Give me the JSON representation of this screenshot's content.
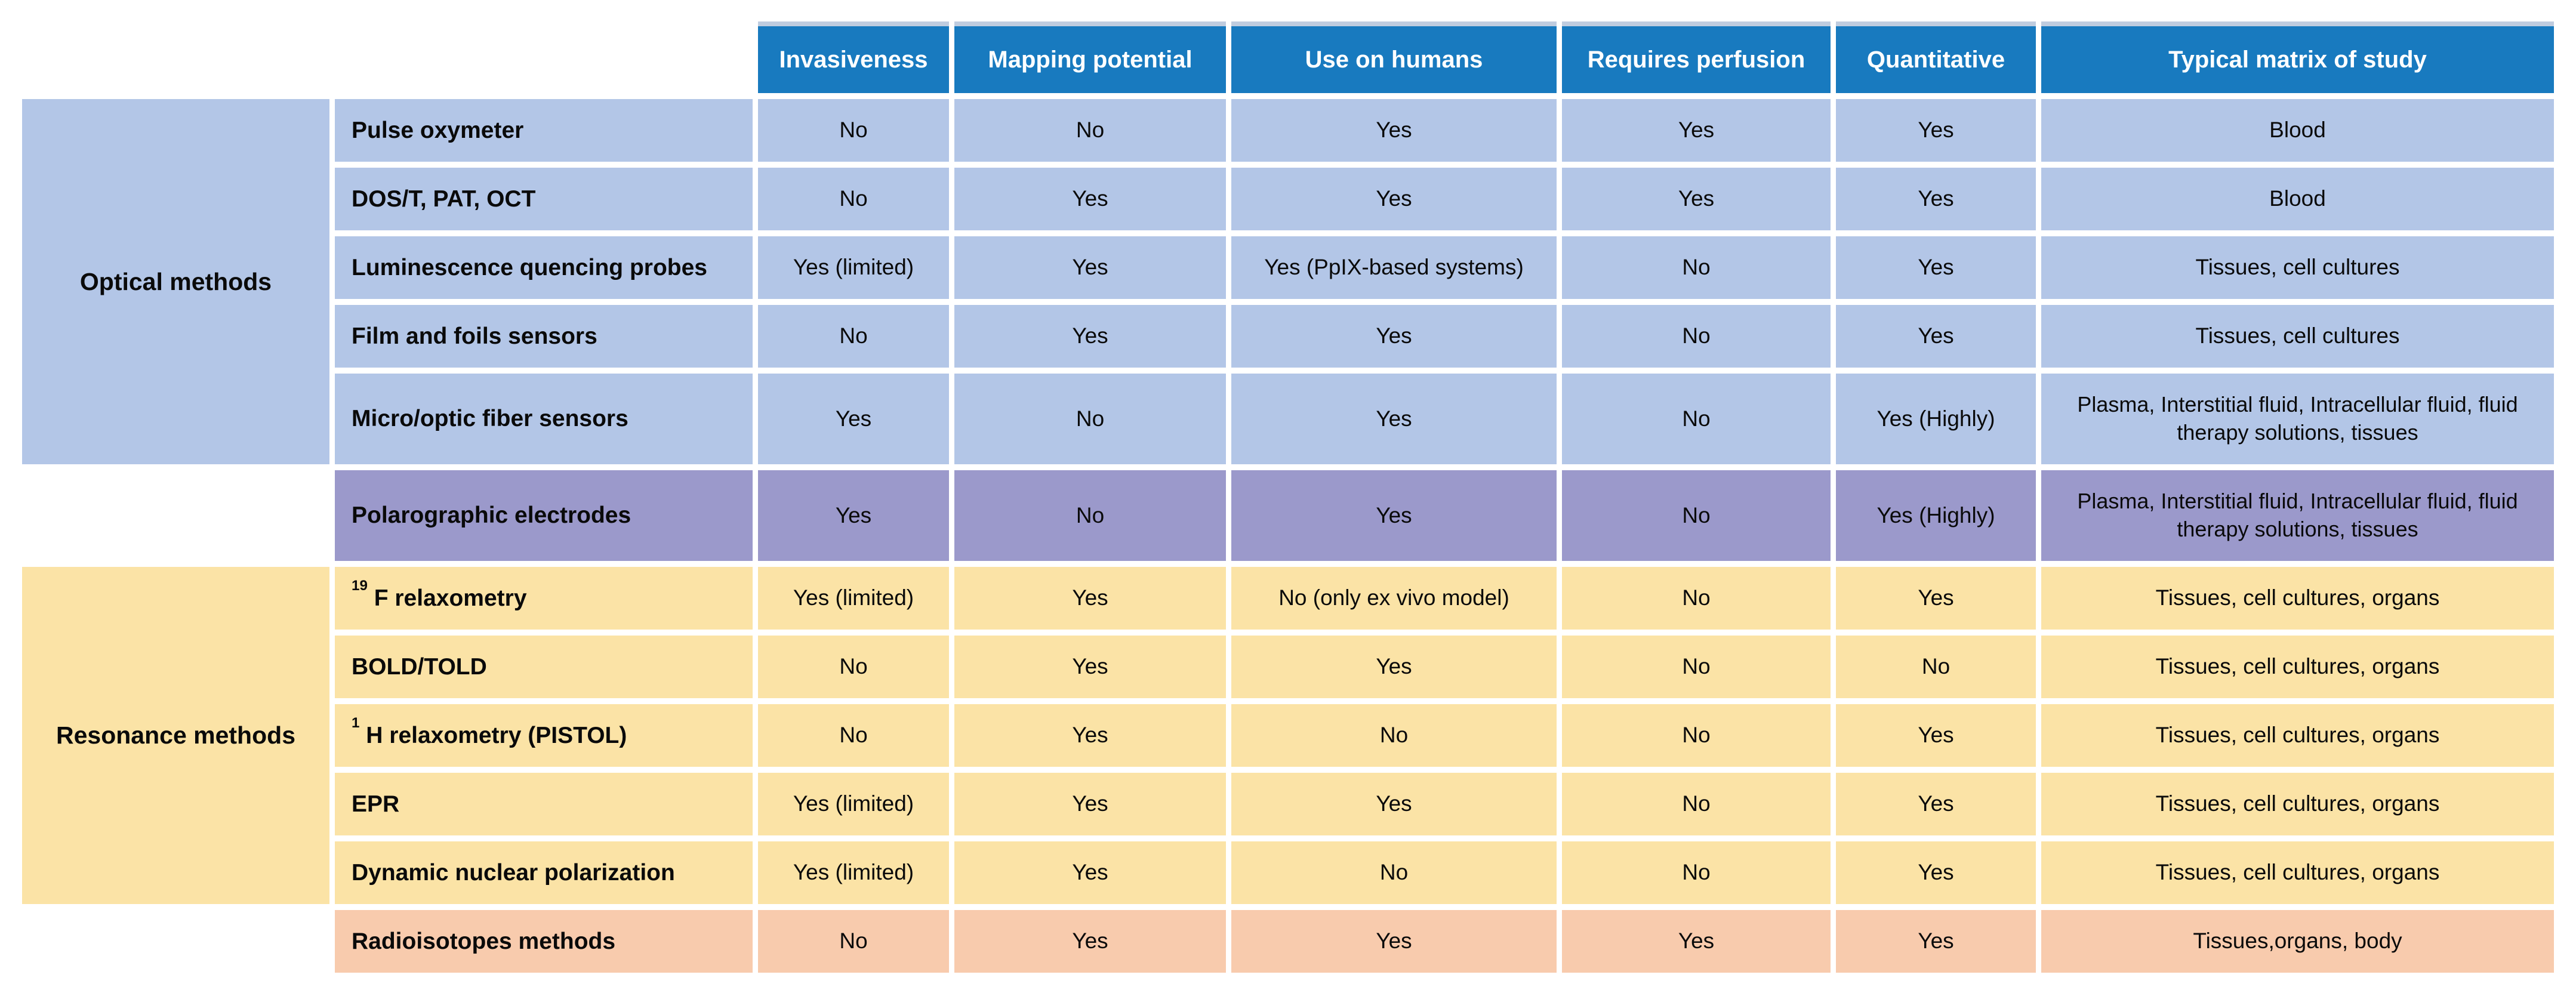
{
  "colors": {
    "header_bg": "#187ABF",
    "header_text": "#ffffff",
    "optical_row_bg": "#B3C6E7",
    "polarographic_row_bg": "#9B99CB",
    "resonance_row_bg": "#FBE3A6",
    "radioisotopes_row_bg": "#F8CBAD",
    "text": "#0a0a0a",
    "header_top_strip": "#BFCCDF",
    "page_bg": "#ffffff"
  },
  "chart_data": {
    "type": "table",
    "title": "",
    "column_headers": [
      "Invasiveness",
      "Mapping potential",
      "Use on humans",
      "Requires perfusion",
      "Quantitative",
      "Typical matrix of study"
    ],
    "layout": {
      "grid": "white gaps between cells",
      "group_column_headerless": true,
      "method_column_headerless": true
    },
    "rows": [
      {
        "group": {
          "label": "Optical methods",
          "span": 5,
          "theme": "optical"
        },
        "method": "Pulse oxymeter",
        "theme": "optical",
        "tall": false,
        "values": [
          "No",
          "No",
          "Yes",
          "Yes",
          "Yes",
          "Blood"
        ]
      },
      {
        "method": "DOS/T, PAT, OCT",
        "theme": "optical",
        "tall": false,
        "values": [
          "No",
          "Yes",
          "Yes",
          "Yes",
          "Yes",
          "Blood"
        ]
      },
      {
        "method": "Luminescence quencing probes",
        "theme": "optical",
        "tall": false,
        "values": [
          "Yes (limited)",
          "Yes",
          "Yes (PpIX-based systems)",
          "No",
          "Yes",
          "Tissues, cell cultures"
        ]
      },
      {
        "method": "Film and foils sensors",
        "theme": "optical",
        "tall": false,
        "values": [
          "No",
          "Yes",
          "Yes",
          "No",
          "Yes",
          "Tissues, cell cultures"
        ]
      },
      {
        "method": "Micro/optic fiber sensors",
        "theme": "optical",
        "tall": true,
        "values": [
          "Yes",
          "No",
          "Yes",
          "No",
          "Yes (Highly)",
          "Plasma, Interstitial fluid, Intracellular fluid, fluid therapy solutions, tissues"
        ]
      },
      {
        "group": {
          "label": "",
          "span": 1,
          "theme": "none"
        },
        "method": "Polarographic electrodes",
        "theme": "polarographic",
        "tall": true,
        "values": [
          "Yes",
          "No",
          "Yes",
          "No",
          "Yes (Highly)",
          "Plasma, Interstitial fluid, Intracellular fluid, fluid therapy solutions, tissues"
        ]
      },
      {
        "group": {
          "label": "Resonance methods",
          "span": 5,
          "theme": "resonance"
        },
        "method_sup": "19",
        "method": " F relaxometry",
        "theme": "resonance",
        "tall": false,
        "values": [
          "Yes (limited)",
          "Yes",
          "No (only ex vivo model)",
          "No",
          "Yes",
          "Tissues, cell cultures, organs"
        ]
      },
      {
        "method": "BOLD/TOLD",
        "theme": "resonance",
        "tall": false,
        "values": [
          "No",
          "Yes",
          "Yes",
          "No",
          "No",
          "Tissues, cell cultures, organs"
        ]
      },
      {
        "method_sup": "1",
        "method": " H relaxometry (PISTOL)",
        "theme": "resonance",
        "tall": false,
        "values": [
          "No",
          "Yes",
          "No",
          "No",
          "Yes",
          "Tissues, cell cultures, organs"
        ]
      },
      {
        "method": "EPR",
        "theme": "resonance",
        "tall": false,
        "values": [
          "Yes (limited)",
          "Yes",
          "Yes",
          "No",
          "Yes",
          "Tissues, cell cultures, organs"
        ]
      },
      {
        "method": "Dynamic nuclear polarization",
        "theme": "resonance",
        "tall": false,
        "values": [
          "Yes (limited)",
          "Yes",
          "No",
          "No",
          "Yes",
          "Tissues, cell cultures, organs"
        ]
      },
      {
        "group": {
          "label": "",
          "span": 1,
          "theme": "none"
        },
        "method": "Radioisotopes methods",
        "theme": "radioisotopes",
        "tall": false,
        "values": [
          "No",
          "Yes",
          "Yes",
          "Yes",
          "Yes",
          "Tissues,organs, body"
        ]
      }
    ]
  }
}
